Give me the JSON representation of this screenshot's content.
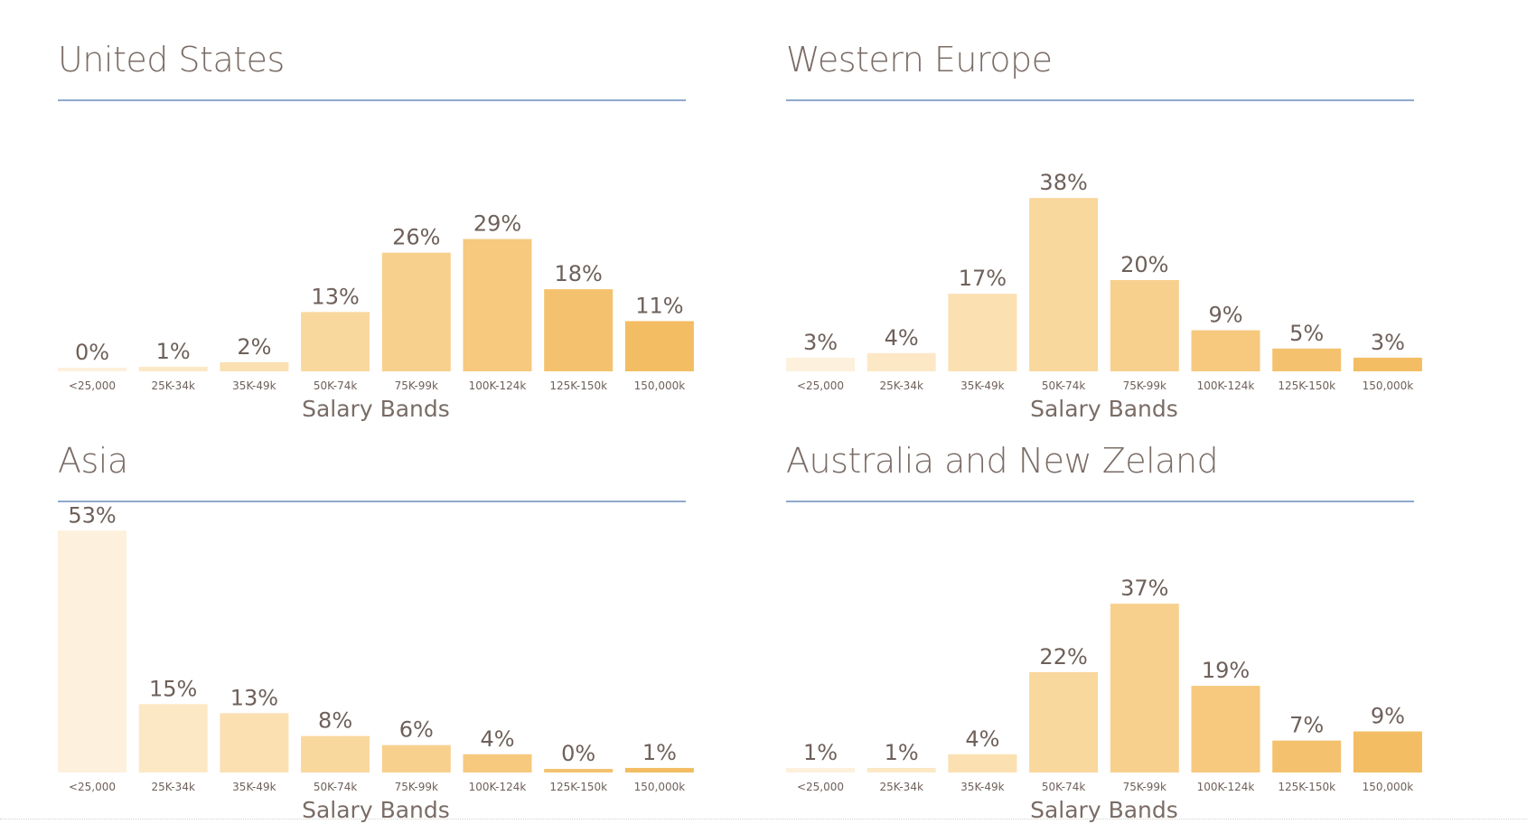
{
  "colors": [
    "#fdf0dc",
    "#fde8c6",
    "#fbe0b2",
    "#f9d89e",
    "#f7d08e",
    "#f6c97e",
    "#f4c26e",
    "#f3bd63"
  ],
  "chart_data": [
    {
      "type": "bar",
      "title": "United States",
      "xlabel": "Salary Bands",
      "categories": [
        "<25,000",
        "25K-34k",
        "35K-49k",
        "50K-74k",
        "75K-99k",
        "100K-124k",
        "125K-150k",
        "150,000k"
      ],
      "values": [
        0,
        1,
        2,
        13,
        26,
        29,
        18,
        11
      ],
      "value_labels": [
        "0%",
        "1%",
        "2%",
        "13%",
        "26%",
        "29%",
        "18%",
        "11%"
      ]
    },
    {
      "type": "bar",
      "title": "Western Europe",
      "xlabel": "Salary Bands",
      "categories": [
        "<25,000",
        "25K-34k",
        "35K-49k",
        "50K-74k",
        "75K-99k",
        "100K-124k",
        "125K-150k",
        "150,000k"
      ],
      "values": [
        3,
        4,
        17,
        38,
        20,
        9,
        5,
        3
      ],
      "value_labels": [
        "3%",
        "4%",
        "17%",
        "38%",
        "20%",
        "9%",
        "5%",
        "3%"
      ]
    },
    {
      "type": "bar",
      "title": "Asia",
      "xlabel": "Salary Bands",
      "categories": [
        "<25,000",
        "25K-34k",
        "35K-49k",
        "50K-74k",
        "75K-99k",
        "100K-124k",
        "125K-150k",
        "150,000k"
      ],
      "values": [
        53,
        15,
        13,
        8,
        6,
        4,
        0,
        1
      ],
      "value_labels": [
        "53%",
        "15%",
        "13%",
        "8%",
        "6%",
        "4%",
        "0%",
        "1%"
      ]
    },
    {
      "type": "bar",
      "title": "Australia and New Zeland",
      "xlabel": "Salary Bands",
      "categories": [
        "<25,000",
        "25K-34k",
        "35K-49k",
        "50K-74k",
        "75K-99k",
        "100K-124k",
        "125K-150k",
        "150,000k"
      ],
      "values": [
        1,
        1,
        4,
        22,
        37,
        19,
        7,
        9
      ],
      "value_labels": [
        "1%",
        "1%",
        "4%",
        "22%",
        "37%",
        "19%",
        "7%",
        "9%"
      ]
    }
  ]
}
